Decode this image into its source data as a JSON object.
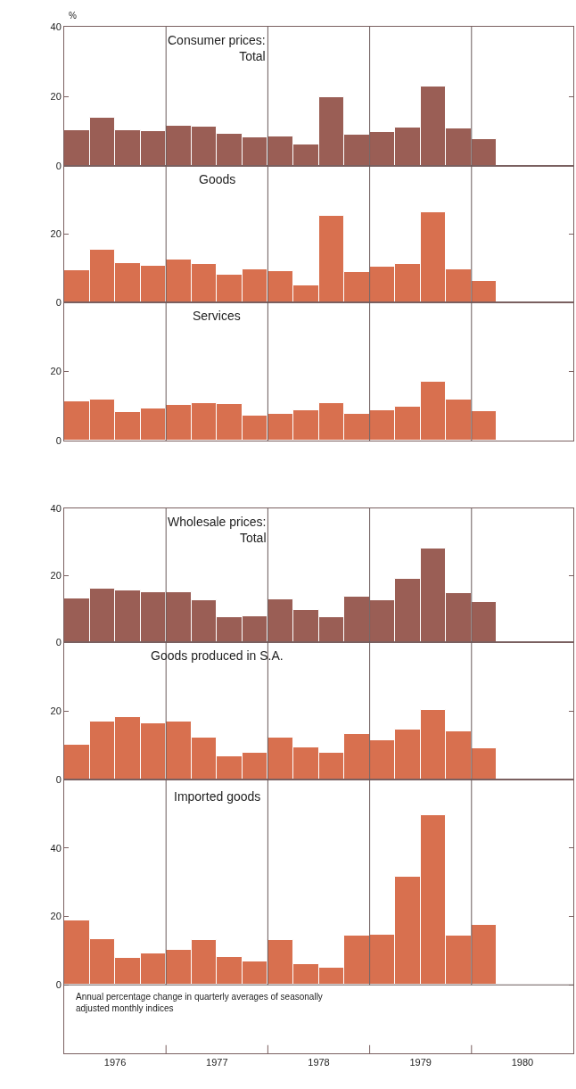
{
  "chart_data": [
    {
      "type": "bar",
      "title": "Consumer prices:\nTotal",
      "ylabel": "%",
      "x": [
        1976.125,
        1976.375,
        1976.625,
        1976.875,
        1977.125,
        1977.375,
        1977.625,
        1977.875,
        1978.125,
        1978.375,
        1978.625,
        1978.875,
        1979.125,
        1979.375,
        1979.625,
        1979.875,
        1980.125
      ],
      "values": [
        10.3,
        13.8,
        10.3,
        10,
        11.6,
        11.3,
        9.2,
        8.1,
        8.4,
        6.2,
        19.8,
        9,
        9.8,
        11,
        22.7,
        10.7,
        7.7
      ],
      "color": "#9a5e55",
      "xlim": [
        1976,
        1981
      ],
      "ylim": [
        0,
        40
      ],
      "yticks": [
        0,
        20,
        40
      ],
      "tick_labels": "y",
      "grid": false,
      "ref_lines": [
        {
          "axis": "x",
          "value": 1977,
          "color": "#6a5a5a"
        },
        {
          "axis": "x",
          "value": 1978,
          "color": "#6a5a5a"
        },
        {
          "axis": "x",
          "value": 1979,
          "color": "#6a5a5a"
        },
        {
          "axis": "x",
          "value": 1980,
          "color": "#6a5a5a"
        }
      ]
    },
    {
      "type": "bar",
      "title": "Goods",
      "x": [
        1976.125,
        1976.375,
        1976.625,
        1976.875,
        1977.125,
        1977.375,
        1977.625,
        1977.875,
        1978.125,
        1978.375,
        1978.625,
        1978.875,
        1979.125,
        1979.375,
        1979.625,
        1979.875,
        1980.125
      ],
      "values": [
        9.5,
        15.4,
        11.4,
        10.7,
        12.6,
        11.3,
        8.2,
        9.8,
        9.2,
        5,
        25.3,
        8.8,
        10.4,
        11.3,
        26.3,
        9.8,
        6.4
      ],
      "color": "#d8704f",
      "xlim": [
        1976,
        1981
      ],
      "ylim": [
        0,
        40
      ],
      "yticks": [
        0,
        20
      ],
      "tick_labels": "y",
      "grid": false,
      "ref_lines": [
        {
          "axis": "x",
          "value": 1977,
          "color": "#6a5a5a"
        },
        {
          "axis": "x",
          "value": 1978,
          "color": "#6a5a5a"
        },
        {
          "axis": "x",
          "value": 1979,
          "color": "#6a5a5a"
        },
        {
          "axis": "x",
          "value": 1980,
          "color": "#6a5a5a"
        }
      ]
    },
    {
      "type": "bar",
      "title": "Services",
      "x": [
        1976.125,
        1976.375,
        1976.625,
        1976.875,
        1977.125,
        1977.375,
        1977.625,
        1977.875,
        1978.125,
        1978.375,
        1978.625,
        1978.875,
        1979.125,
        1979.375,
        1979.625,
        1979.875,
        1980.125
      ],
      "values": [
        11.4,
        12,
        8.3,
        9.4,
        10.2,
        10.8,
        10.7,
        7.2,
        7.8,
        8.9,
        10.9,
        7.8,
        8.9,
        9.8,
        17.1,
        11.8,
        8.6
      ],
      "color": "#d8704f",
      "xlim": [
        1976,
        1981
      ],
      "ylim": [
        0,
        40
      ],
      "yticks": [
        0,
        20
      ],
      "tick_labels": "y",
      "grid": false,
      "ref_lines": [
        {
          "axis": "x",
          "value": 1977,
          "color": "#6a5a5a"
        },
        {
          "axis": "x",
          "value": 1978,
          "color": "#6a5a5a"
        },
        {
          "axis": "x",
          "value": 1979,
          "color": "#6a5a5a"
        },
        {
          "axis": "x",
          "value": 1980,
          "color": "#6a5a5a"
        }
      ]
    },
    {
      "type": "bar",
      "title": "Wholesale prices:\nTotal",
      "x": [
        1976.125,
        1976.375,
        1976.625,
        1976.875,
        1977.125,
        1977.375,
        1977.625,
        1977.875,
        1978.125,
        1978.375,
        1978.625,
        1978.875,
        1979.125,
        1979.375,
        1979.625,
        1979.875,
        1980.125
      ],
      "values": [
        13,
        16.1,
        15.6,
        15,
        15,
        12.6,
        7.6,
        7.8,
        12.8,
        9.5,
        7.4,
        13.5,
        12.6,
        19,
        27.9,
        14.7,
        11.9
      ],
      "color": "#9a5e55",
      "xlim": [
        1976,
        1981
      ],
      "ylim": [
        0,
        40
      ],
      "yticks": [
        0,
        20,
        40
      ],
      "tick_labels": "y",
      "grid": false,
      "ref_lines": [
        {
          "axis": "x",
          "value": 1977,
          "color": "#6a5a5a"
        },
        {
          "axis": "x",
          "value": 1978,
          "color": "#6a5a5a"
        },
        {
          "axis": "x",
          "value": 1979,
          "color": "#6a5a5a"
        },
        {
          "axis": "x",
          "value": 1980,
          "color": "#6a5a5a"
        }
      ]
    },
    {
      "type": "bar",
      "title": "Goods produced in S.A.",
      "x": [
        1976.125,
        1976.375,
        1976.625,
        1976.875,
        1977.125,
        1977.375,
        1977.625,
        1977.875,
        1978.125,
        1978.375,
        1978.625,
        1978.875,
        1979.125,
        1979.375,
        1979.625,
        1979.875,
        1980.125
      ],
      "values": [
        10.1,
        17,
        18.1,
        16.4,
        16.8,
        12.3,
        6.8,
        7.9,
        12.1,
        9.3,
        7.7,
        13.2,
        11.5,
        14.6,
        20.2,
        14.1,
        9
      ],
      "color": "#d8704f",
      "xlim": [
        1976,
        1981
      ],
      "ylim": [
        0,
        40
      ],
      "yticks": [
        0,
        20
      ],
      "tick_labels": "y",
      "grid": false,
      "ref_lines": [
        {
          "axis": "x",
          "value": 1977,
          "color": "#6a5a5a"
        },
        {
          "axis": "x",
          "value": 1978,
          "color": "#6a5a5a"
        },
        {
          "axis": "x",
          "value": 1979,
          "color": "#6a5a5a"
        },
        {
          "axis": "x",
          "value": 1980,
          "color": "#6a5a5a"
        }
      ]
    },
    {
      "type": "bar",
      "title": "Imported goods",
      "x": [
        1976.125,
        1976.375,
        1976.625,
        1976.875,
        1977.125,
        1977.375,
        1977.625,
        1977.875,
        1978.125,
        1978.375,
        1978.625,
        1978.875,
        1979.125,
        1979.375,
        1979.625,
        1979.875,
        1980.125
      ],
      "values": [
        18.7,
        13.3,
        8,
        9.3,
        10.1,
        13,
        8.2,
        6.9,
        13,
        6.1,
        5,
        14.4,
        14.6,
        31.7,
        49.6,
        14.4,
        17.6
      ],
      "color": "#d8704f",
      "xlim": [
        1976,
        1981
      ],
      "ylim": [
        -20,
        60
      ],
      "yticks": [
        0,
        20,
        40
      ],
      "grid": false,
      "xticks": [
        {
          "value": 1976.5,
          "label": "1976"
        },
        {
          "value": 1977.5,
          "label": "1977"
        },
        {
          "value": 1978.5,
          "label": "1978"
        },
        {
          "value": 1979.5,
          "label": "1979"
        },
        {
          "value": 1980.5,
          "label": "1980"
        },
        {
          "value": 1977,
          "label": null
        },
        {
          "value": 1978,
          "label": null
        },
        {
          "value": 1979,
          "label": null
        },
        {
          "value": 1980,
          "label": null
        }
      ],
      "ref_lines": [
        {
          "axis": "x",
          "value": 1977,
          "color": "#6a5a5a"
        },
        {
          "axis": "x",
          "value": 1978,
          "color": "#6a5a5a"
        },
        {
          "axis": "x",
          "value": 1979,
          "color": "#6a5a5a"
        },
        {
          "axis": "x",
          "value": 1980,
          "color": "#6a5a5a"
        },
        {
          "axis": "y",
          "value": 0,
          "color": "#6a5a5a"
        }
      ],
      "annotations": [
        "Annual percentage change in quarterly averages of seasonally\nadjusted monthly indices"
      ]
    }
  ]
}
